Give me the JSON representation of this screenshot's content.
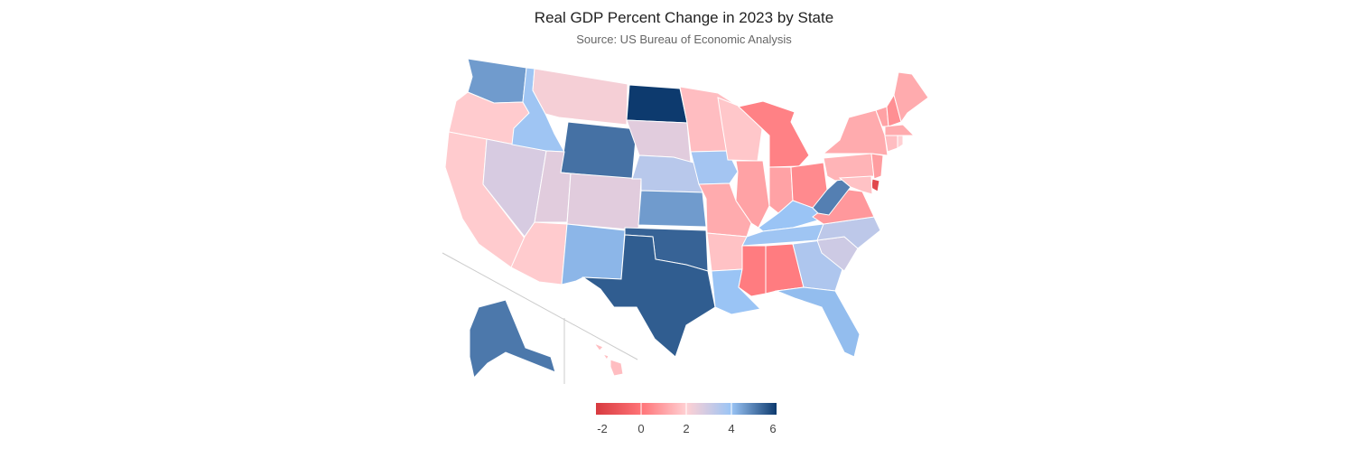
{
  "chart_data": {
    "type": "choropleth",
    "title": "Real GDP Percent Change in 2023 by State",
    "subtitle": "Source: US Bureau of Economic Analysis",
    "scale": {
      "min": -2,
      "max": 6,
      "ticks": [
        -2,
        0,
        2,
        4,
        6
      ],
      "tick_labels": [
        "-2",
        "0",
        "2",
        "4",
        "6"
      ],
      "colors": [
        "#d73a3f",
        "#ff7377",
        "#ffd0d3",
        "#9ac4f5",
        "#0d3a6e"
      ]
    },
    "states": [
      {
        "id": "WA",
        "value": 4.6
      },
      {
        "id": "OR",
        "value": 1.9
      },
      {
        "id": "CA",
        "value": 1.9
      },
      {
        "id": "NV",
        "value": 2.8
      },
      {
        "id": "ID",
        "value": 3.9
      },
      {
        "id": "MT",
        "value": 2.2
      },
      {
        "id": "WY",
        "value": 5.2
      },
      {
        "id": "UT",
        "value": 2.6
      },
      {
        "id": "CO",
        "value": 2.6
      },
      {
        "id": "AZ",
        "value": 1.9
      },
      {
        "id": "NM",
        "value": 4.2
      },
      {
        "id": "ND",
        "value": 6.0
      },
      {
        "id": "SD",
        "value": 2.6
      },
      {
        "id": "NE",
        "value": 3.4
      },
      {
        "id": "KS",
        "value": 4.6
      },
      {
        "id": "OK",
        "value": 5.4
      },
      {
        "id": "TX",
        "value": 5.5
      },
      {
        "id": "MN",
        "value": 1.6
      },
      {
        "id": "IA",
        "value": 3.8
      },
      {
        "id": "MO",
        "value": 1.2
      },
      {
        "id": "AR",
        "value": 1.7
      },
      {
        "id": "LA",
        "value": 4.0
      },
      {
        "id": "WI",
        "value": 1.8
      },
      {
        "id": "IL",
        "value": 1.0
      },
      {
        "id": "MI",
        "value": 0.3
      },
      {
        "id": "IN",
        "value": 1.0
      },
      {
        "id": "OH",
        "value": 0.5
      },
      {
        "id": "KY",
        "value": 4.0
      },
      {
        "id": "TN",
        "value": 3.9
      },
      {
        "id": "MS",
        "value": 0.2
      },
      {
        "id": "AL",
        "value": 0.2
      },
      {
        "id": "GA",
        "value": 3.6
      },
      {
        "id": "FL",
        "value": 4.1
      },
      {
        "id": "SC",
        "value": 3.0
      },
      {
        "id": "NC",
        "value": 3.3
      },
      {
        "id": "VA",
        "value": 0.8
      },
      {
        "id": "WV",
        "value": 5.0
      },
      {
        "id": "PA",
        "value": 1.4
      },
      {
        "id": "NY",
        "value": 1.2
      },
      {
        "id": "VT",
        "value": 1.0
      },
      {
        "id": "NH",
        "value": 0.6
      },
      {
        "id": "ME",
        "value": 1.2
      },
      {
        "id": "MA",
        "value": 1.2
      },
      {
        "id": "CT",
        "value": 1.6
      },
      {
        "id": "RI",
        "value": 2.0
      },
      {
        "id": "NJ",
        "value": 0.9
      },
      {
        "id": "DE",
        "value": -1.5
      },
      {
        "id": "MD",
        "value": 1.7
      },
      {
        "id": "AK",
        "value": 5.1
      },
      {
        "id": "HI",
        "value": 1.6
      }
    ]
  }
}
